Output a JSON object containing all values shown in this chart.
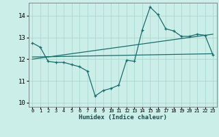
{
  "xlabel": "Humidex (Indice chaleur)",
  "bg_color": "#cceee8",
  "grid_color": "#aad8d2",
  "line_color": "#1a6b6b",
  "xlim": [
    -0.5,
    23.5
  ],
  "ylim": [
    9.8,
    14.6
  ],
  "yticks": [
    10,
    11,
    12,
    13,
    14
  ],
  "xticks": [
    0,
    1,
    2,
    3,
    4,
    5,
    6,
    7,
    8,
    9,
    10,
    11,
    12,
    13,
    14,
    15,
    16,
    17,
    18,
    19,
    20,
    21,
    22,
    23
  ],
  "series1_x": [
    0,
    1,
    2,
    3,
    4,
    5,
    6,
    7,
    8,
    9,
    10,
    11,
    12,
    13,
    14,
    15,
    16,
    17,
    18,
    19,
    20,
    21,
    22,
    23
  ],
  "series1_y": [
    12.75,
    12.55,
    11.9,
    11.85,
    11.85,
    11.75,
    11.65,
    11.45,
    10.3,
    10.55,
    10.65,
    10.8,
    11.95,
    11.9,
    13.35,
    14.4,
    14.05,
    13.4,
    13.3,
    13.05,
    13.05,
    13.15,
    13.1,
    12.2
  ],
  "series2_x": [
    0,
    23
  ],
  "series2_y": [
    12.1,
    12.25
  ],
  "series3_x": [
    0,
    23
  ],
  "series3_y": [
    12.0,
    13.15
  ]
}
